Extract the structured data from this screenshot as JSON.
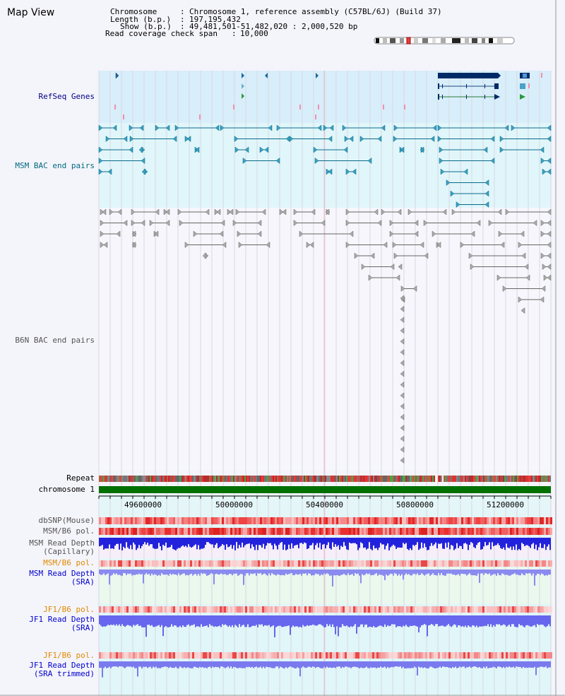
{
  "map_title": "Map View",
  "info": {
    "chromosome_label": "Chromosome",
    "chromosome_value": "Chromosome 1, reference assembly (C57BL/6J) (Build 37)",
    "length_label": "Length (b.p.)",
    "length_value": "197,195,432",
    "show_label": "Show (b.p.)",
    "show_value": "49,481,501-51,482,020 : 2,000,520 bp",
    "coverage_label": "Read coverage check span",
    "coverage_value": "10,000"
  },
  "tracks": {
    "refseq": "RefSeq Genes",
    "msm_bac": "MSM BAC end pairs",
    "b6n_bac": "B6N BAC end pairs",
    "repeat": "Repeat",
    "chromosome": "chromosome 1",
    "dbsnp": "dbSNP(Mouse)",
    "msm_b6_pol_1": "MSM/B6 pol.",
    "msm_read_depth_cap_1": "MSM Read Depth",
    "msm_read_depth_cap_2": "(Capillary)",
    "msm_b6_pol_2": "MSM/B6 pol.",
    "msm_read_depth_sra_1": "MSM Read Depth",
    "msm_read_depth_sra_2": "(SRA)",
    "jf1_b6_pol_1": "JF1/B6 pol.",
    "jf1_read_depth_sra_1": "JF1 Read Depth",
    "jf1_read_depth_sra_2": "(SRA)",
    "jf1_b6_pol_2": "JF1/B6 pol.",
    "jf1_read_depth_trim_1": "JF1 Read Depth",
    "jf1_read_depth_trim_2": "(SRA trimmed)"
  },
  "axis": {
    "ticks": [
      "49600000",
      "50000000",
      "50400000",
      "50800000",
      "51200000"
    ]
  },
  "colors": {
    "label_navy": "#000080",
    "label_teal": "#006b80",
    "label_gray": "#555555",
    "label_orange": "#e08a00",
    "label_blue": "#0000cc",
    "refseq_bg": "#d8eefa",
    "msm_bg": "#e0f6fa",
    "b6n_bg": "#f6f6fc",
    "chrom_green": "#007000",
    "gene_dark": "#002a66"
  }
}
